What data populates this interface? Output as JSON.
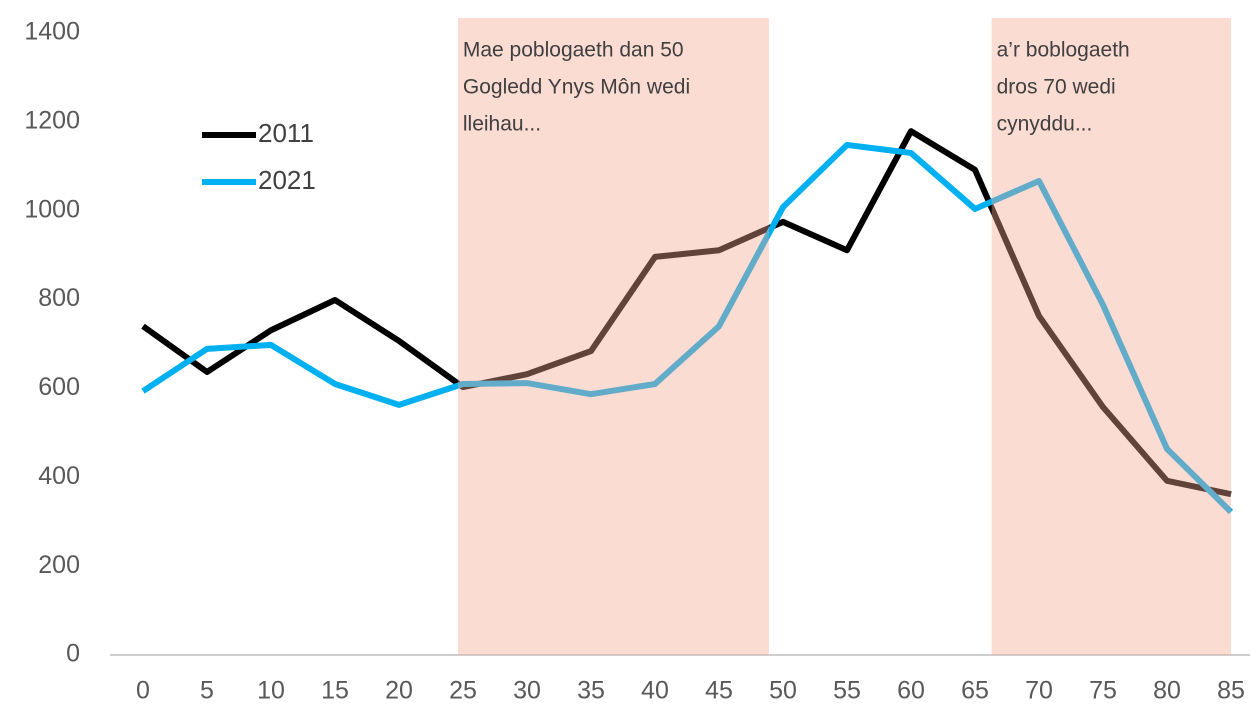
{
  "chart_data": {
    "type": "line",
    "x": [
      0,
      5,
      10,
      15,
      20,
      25,
      30,
      35,
      40,
      45,
      50,
      55,
      60,
      65,
      70,
      75,
      80,
      85
    ],
    "xlim": [
      0,
      85
    ],
    "series": [
      {
        "name": "2011",
        "color": "#000000",
        "values": [
          740,
          637,
          731,
          799,
          707,
          603,
          632,
          684,
          896,
          911,
          975,
          911,
          1179,
          1092,
          763,
          558,
          392,
          362
        ]
      },
      {
        "name": "2021",
        "color": "#00b0f0",
        "values": [
          594,
          689,
          698,
          610,
          563,
          610,
          612,
          587,
          610,
          740,
          1008,
          1148,
          1130,
          1004,
          1067,
          788,
          464,
          322
        ]
      }
    ],
    "ylim": [
      0,
      1400
    ],
    "yticks": [
      0,
      200,
      400,
      600,
      800,
      1000,
      1200,
      1400
    ],
    "grid": false,
    "legend": "upper left",
    "bands": [
      {
        "from": 24.6,
        "to": 48.9,
        "color": "#f4a890",
        "text": [
          "Mae poblogaeth dan 50",
          "Gogledd Ynys Môn wedi",
          "lleihau..."
        ]
      },
      {
        "from": 66.3,
        "to": 85,
        "color": "#f4a890",
        "text": [
          "a’r boblogaeth",
          "dros 70 wedi",
          "cynyddu..."
        ]
      }
    ]
  }
}
